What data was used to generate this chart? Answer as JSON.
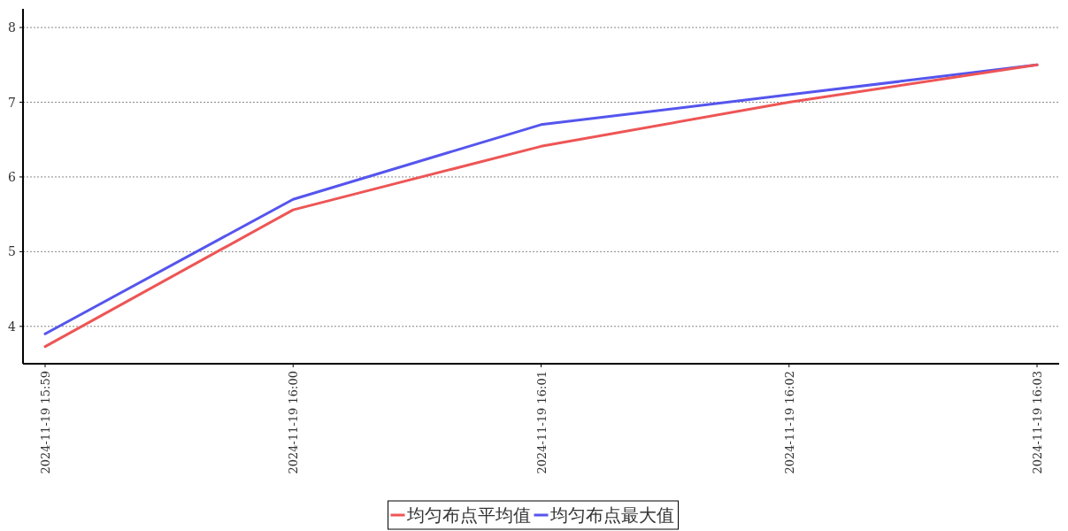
{
  "chart_data": {
    "type": "line",
    "categories": [
      "2024-11-19 15:59",
      "2024-11-19 16:00",
      "2024-11-19 16:01",
      "2024-11-19 16:02",
      "2024-11-19 16:03"
    ],
    "series": [
      {
        "name": "均匀布点平均值",
        "color": "#ee5555",
        "values": [
          3.73,
          5.56,
          6.41,
          7.0,
          7.5
        ]
      },
      {
        "name": "均匀布点最大值",
        "color": "#5555ee",
        "values": [
          3.9,
          5.7,
          6.7,
          7.1,
          7.5
        ]
      }
    ],
    "ylim": [
      3.5,
      8.25
    ],
    "yticks": [
      4,
      5,
      6,
      7,
      8
    ],
    "grid": "y",
    "legend": "bottom",
    "line_style": "solid",
    "marker": "none"
  }
}
